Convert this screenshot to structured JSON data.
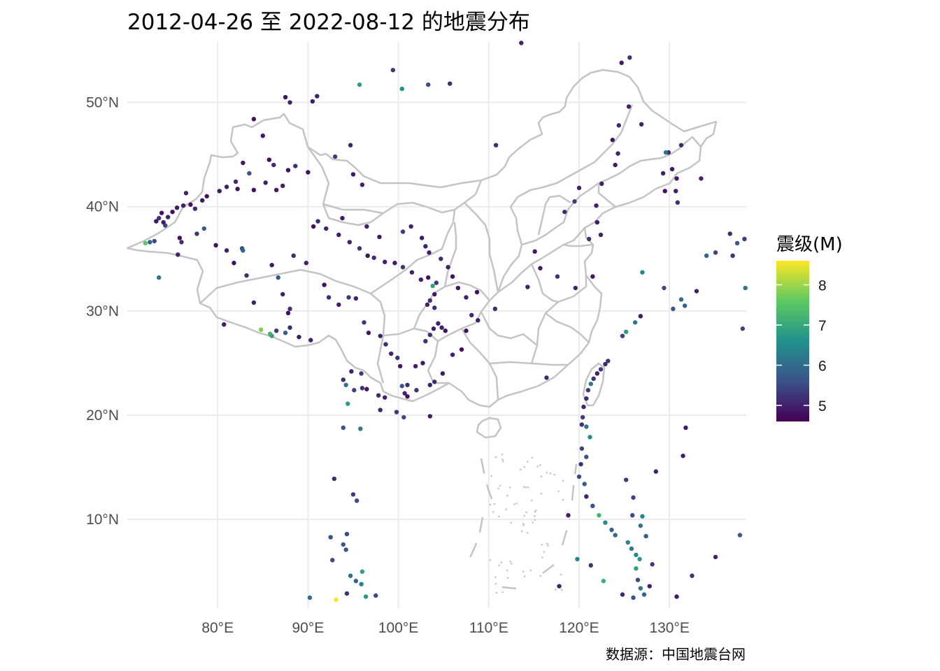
{
  "title": "2012-04-26 至 2022-08-12 的地震分布",
  "caption": "数据源：中国地震台网",
  "legend": {
    "title": "震级(M)",
    "ticks": [
      {
        "label": "8",
        "value": 8
      },
      {
        "label": "7",
        "value": 7
      },
      {
        "label": "6",
        "value": 6
      },
      {
        "label": "5",
        "value": 5
      }
    ],
    "min": 4.6,
    "max": 8.6,
    "colors": [
      "#440154",
      "#3b528b",
      "#21918c",
      "#5ec962",
      "#fde725"
    ]
  },
  "colors": {
    "grid": "#ebebeb",
    "boundary": "#c4c4c4",
    "tick_text": "#4d4d4d"
  },
  "chart_data": {
    "type": "scatter",
    "x_ticks": [
      {
        "label": "80°E",
        "value": 80
      },
      {
        "label": "90°E",
        "value": 90
      },
      {
        "label": "100°E",
        "value": 100
      },
      {
        "label": "110°E",
        "value": 110
      },
      {
        "label": "120°E",
        "value": 120
      },
      {
        "label": "130°E",
        "value": 130
      }
    ],
    "y_ticks": [
      {
        "label": "50°N",
        "value": 50
      },
      {
        "label": "40°N",
        "value": 40
      },
      {
        "label": "30°N",
        "value": 30
      },
      {
        "label": "20°N",
        "value": 20
      },
      {
        "label": "10°N",
        "value": 10
      }
    ],
    "xlim": [
      70,
      138.5
    ],
    "ylim": [
      1.5,
      55.8
    ],
    "color_variable": "震级(M)",
    "points": [
      [
        73.5,
        38.9,
        5.2
      ],
      [
        74.0,
        38.5,
        4.9
      ],
      [
        74.5,
        39.0,
        5.0
      ],
      [
        73.8,
        39.4,
        4.8
      ],
      [
        74.2,
        38.2,
        5.4
      ],
      [
        73.2,
        38.6,
        4.9
      ],
      [
        75.0,
        39.5,
        4.8
      ],
      [
        75.5,
        39.9,
        4.9
      ],
      [
        76.2,
        40.1,
        5.0
      ],
      [
        77.0,
        40.2,
        4.8
      ],
      [
        77.5,
        39.8,
        5.1
      ],
      [
        78.3,
        40.6,
        4.9
      ],
      [
        78.8,
        41.0,
        4.8
      ],
      [
        76.5,
        41.3,
        5.0
      ],
      [
        80.2,
        41.5,
        4.9
      ],
      [
        81.0,
        41.9,
        5.0
      ],
      [
        82.2,
        41.7,
        4.8
      ],
      [
        82.0,
        42.4,
        5.1
      ],
      [
        83.5,
        43.2,
        5.6
      ],
      [
        82.8,
        44.2,
        4.9
      ],
      [
        84.0,
        41.6,
        4.8
      ],
      [
        85.3,
        42.3,
        5.0
      ],
      [
        86.5,
        41.6,
        4.9
      ],
      [
        87.2,
        42.0,
        5.0
      ],
      [
        87.8,
        43.5,
        4.8
      ],
      [
        88.6,
        43.9,
        5.2
      ],
      [
        90.0,
        43.3,
        4.8
      ],
      [
        85.7,
        44.5,
        4.8
      ],
      [
        86.2,
        44.0,
        5.1
      ],
      [
        85.0,
        46.8,
        4.9
      ],
      [
        88.0,
        50.0,
        5.0
      ],
      [
        87.5,
        50.5,
        4.8
      ],
      [
        90.5,
        50.1,
        4.9
      ],
      [
        91.0,
        50.6,
        5.0
      ],
      [
        84.0,
        48.4,
        4.8
      ],
      [
        93.0,
        44.8,
        5.3
      ],
      [
        94.7,
        45.9,
        5.0
      ],
      [
        95.0,
        43.1,
        4.9
      ],
      [
        96.0,
        42.1,
        5.0
      ],
      [
        95.7,
        51.7,
        6.8
      ],
      [
        99.4,
        53.1,
        5.2
      ],
      [
        100.4,
        51.3,
        6.6
      ],
      [
        103.3,
        51.7,
        5.5
      ],
      [
        105.7,
        51.8,
        5.1
      ],
      [
        113.6,
        55.7,
        5.0
      ],
      [
        124.7,
        53.8,
        4.9
      ],
      [
        125.6,
        54.3,
        5.2
      ],
      [
        75.8,
        37.0,
        4.8
      ],
      [
        76.0,
        36.6,
        5.1
      ],
      [
        72.0,
        36.5,
        7.6
      ],
      [
        72.5,
        36.6,
        5.8
      ],
      [
        73.0,
        36.7,
        5.5
      ],
      [
        73.5,
        33.2,
        6.2
      ],
      [
        75.6,
        35.4,
        5.0
      ],
      [
        77.7,
        37.4,
        5.2
      ],
      [
        78.5,
        37.9,
        5.7
      ],
      [
        79.8,
        36.3,
        4.8
      ],
      [
        81.0,
        35.8,
        5.0
      ],
      [
        82.7,
        36.0,
        5.5
      ],
      [
        82.8,
        35.8,
        5.9
      ],
      [
        80.7,
        28.7,
        4.9
      ],
      [
        81.8,
        34.6,
        4.8
      ],
      [
        83.2,
        33.4,
        5.1
      ],
      [
        84.0,
        30.8,
        5.0
      ],
      [
        84.8,
        28.2,
        7.8
      ],
      [
        85.8,
        27.8,
        7.2
      ],
      [
        86.0,
        27.6,
        6.9
      ],
      [
        86.5,
        28.1,
        5.3
      ],
      [
        87.5,
        27.9,
        5.8
      ],
      [
        88.0,
        28.4,
        5.1
      ],
      [
        89.0,
        27.5,
        4.9
      ],
      [
        90.3,
        27.2,
        5.0
      ],
      [
        87.8,
        29.8,
        4.8
      ],
      [
        88.0,
        30.2,
        5.2
      ],
      [
        87.2,
        31.6,
        5.0
      ],
      [
        86.7,
        33.2,
        5.7
      ],
      [
        86.0,
        34.4,
        4.9
      ],
      [
        88.4,
        35.3,
        5.1
      ],
      [
        89.8,
        34.6,
        5.0
      ],
      [
        91.8,
        32.5,
        4.8
      ],
      [
        92.3,
        31.3,
        5.1
      ],
      [
        93.4,
        30.6,
        4.9
      ],
      [
        94.5,
        31.3,
        5.3
      ],
      [
        95.3,
        31.2,
        5.0
      ],
      [
        96.2,
        28.9,
        5.2
      ],
      [
        96.7,
        27.9,
        4.9
      ],
      [
        98.0,
        27.6,
        5.0
      ],
      [
        98.6,
        26.8,
        5.1
      ],
      [
        99.2,
        25.9,
        5.0
      ],
      [
        99.9,
        25.5,
        5.2
      ],
      [
        100.2,
        24.7,
        4.9
      ],
      [
        100.4,
        22.8,
        5.6
      ],
      [
        100.7,
        22.1,
        5.0
      ],
      [
        101.0,
        21.8,
        4.8
      ],
      [
        99.8,
        20.3,
        5.3
      ],
      [
        101.0,
        22.9,
        5.1
      ],
      [
        101.9,
        24.7,
        5.0
      ],
      [
        102.7,
        25.0,
        4.9
      ],
      [
        103.0,
        27.1,
        5.2
      ],
      [
        103.5,
        27.7,
        5.1
      ],
      [
        103.9,
        28.3,
        4.9
      ],
      [
        104.4,
        28.8,
        5.0
      ],
      [
        104.8,
        28.4,
        5.0
      ],
      [
        105.2,
        28.1,
        4.8
      ],
      [
        104.0,
        30.3,
        5.1
      ],
      [
        103.2,
        30.6,
        5.0
      ],
      [
        103.5,
        31.0,
        5.2
      ],
      [
        104.0,
        31.6,
        4.9
      ],
      [
        103.8,
        32.4,
        6.9
      ],
      [
        104.2,
        32.7,
        5.3
      ],
      [
        103.3,
        33.2,
        4.8
      ],
      [
        102.5,
        33.0,
        5.0
      ],
      [
        101.5,
        33.7,
        5.0
      ],
      [
        100.5,
        34.2,
        5.2
      ],
      [
        99.6,
        34.6,
        4.9
      ],
      [
        98.5,
        34.7,
        5.0
      ],
      [
        97.3,
        35.1,
        5.1
      ],
      [
        96.6,
        35.3,
        4.8
      ],
      [
        95.7,
        36.0,
        5.2
      ],
      [
        94.6,
        36.6,
        5.0
      ],
      [
        93.4,
        37.3,
        4.9
      ],
      [
        92.0,
        37.9,
        5.0
      ],
      [
        91.1,
        38.6,
        5.1
      ],
      [
        90.6,
        38.1,
        4.8
      ],
      [
        93.8,
        38.9,
        4.9
      ],
      [
        96.5,
        38.1,
        5.0
      ],
      [
        97.9,
        37.1,
        4.9
      ],
      [
        100.5,
        37.6,
        5.3
      ],
      [
        101.4,
        38.1,
        5.0
      ],
      [
        102.6,
        37.0,
        4.9
      ],
      [
        103.0,
        36.2,
        5.0
      ],
      [
        103.4,
        35.6,
        5.0
      ],
      [
        104.7,
        35.0,
        5.1
      ],
      [
        105.5,
        34.2,
        5.0
      ],
      [
        106.0,
        33.3,
        4.8
      ],
      [
        106.6,
        32.2,
        4.9
      ],
      [
        107.5,
        31.3,
        5.0
      ],
      [
        108.1,
        29.6,
        5.1
      ],
      [
        108.8,
        29.1,
        4.9
      ],
      [
        107.5,
        28.1,
        4.8
      ],
      [
        107.0,
        26.3,
        4.8
      ],
      [
        106.0,
        25.8,
        5.0
      ],
      [
        104.9,
        24.0,
        4.9
      ],
      [
        104.0,
        23.2,
        5.1
      ],
      [
        103.5,
        22.9,
        5.0
      ],
      [
        102.0,
        22.4,
        5.2
      ],
      [
        98.5,
        21.7,
        5.0
      ],
      [
        97.8,
        21.9,
        5.1
      ],
      [
        96.5,
        22.5,
        4.9
      ],
      [
        95.1,
        22.4,
        5.4
      ],
      [
        94.2,
        22.9,
        6.1
      ],
      [
        93.9,
        23.4,
        5.1
      ],
      [
        94.8,
        24.2,
        5.0
      ],
      [
        95.9,
        24.0,
        5.3
      ],
      [
        96.0,
        22.6,
        5.2
      ],
      [
        94.4,
        21.1,
        6.8
      ],
      [
        93.9,
        18.8,
        5.6
      ],
      [
        95.8,
        18.7,
        6.2
      ],
      [
        98.0,
        20.5,
        5.1
      ],
      [
        100.6,
        19.8,
        5.5
      ],
      [
        103.5,
        19.9,
        4.9
      ],
      [
        108.7,
        31.8,
        4.8
      ],
      [
        110.7,
        30.2,
        5.1
      ],
      [
        114.3,
        32.3,
        5.0
      ],
      [
        115.7,
        34.1,
        4.9
      ],
      [
        115.1,
        35.7,
        4.9
      ],
      [
        117.6,
        33.3,
        5.2
      ],
      [
        119.6,
        32.2,
        5.0
      ],
      [
        121.5,
        33.3,
        4.9
      ],
      [
        121.1,
        36.9,
        5.2
      ],
      [
        122.4,
        37.3,
        5.0
      ],
      [
        122.0,
        38.5,
        4.9
      ],
      [
        121.9,
        40.1,
        5.0
      ],
      [
        118.4,
        39.5,
        5.1
      ],
      [
        119.5,
        40.5,
        5.3
      ],
      [
        120.0,
        41.8,
        5.0
      ],
      [
        122.5,
        42.2,
        5.0
      ],
      [
        124.0,
        44.0,
        4.9
      ],
      [
        124.3,
        45.1,
        5.0
      ],
      [
        123.7,
        46.4,
        4.8
      ],
      [
        124.4,
        47.8,
        5.1
      ],
      [
        125.5,
        49.6,
        5.0
      ],
      [
        126.9,
        47.9,
        5.0
      ],
      [
        129.3,
        43.2,
        5.0
      ],
      [
        129.9,
        45.2,
        5.1
      ],
      [
        130.3,
        43.6,
        4.9
      ],
      [
        130.8,
        42.7,
        4.9
      ],
      [
        130.7,
        41.5,
        5.0
      ],
      [
        130.9,
        40.4,
        5.1
      ],
      [
        129.5,
        41.5,
        4.8
      ],
      [
        129.6,
        45.2,
        6.1
      ],
      [
        131.3,
        45.9,
        5.1
      ],
      [
        133.5,
        42.7,
        5.0
      ],
      [
        134.1,
        35.3,
        5.9
      ],
      [
        135.1,
        35.6,
        5.4
      ],
      [
        136.7,
        37.4,
        5.1
      ],
      [
        137.5,
        36.5,
        5.6
      ],
      [
        138.3,
        36.9,
        5.3
      ],
      [
        137.0,
        35.3,
        5.2
      ],
      [
        138.4,
        32.2,
        6.2
      ],
      [
        138.1,
        28.3,
        5.4
      ],
      [
        133.0,
        31.9,
        5.0
      ],
      [
        131.7,
        30.5,
        5.8
      ],
      [
        131.3,
        31.1,
        6.0
      ],
      [
        130.4,
        30.2,
        5.7
      ],
      [
        129.4,
        32.2,
        5.5
      ],
      [
        127.0,
        33.7,
        6.4
      ],
      [
        126.8,
        29.5,
        4.9
      ],
      [
        126.2,
        28.9,
        6.2
      ],
      [
        125.2,
        28.0,
        6.8
      ],
      [
        124.8,
        27.6,
        5.4
      ],
      [
        123.2,
        25.2,
        5.2
      ],
      [
        122.9,
        24.9,
        5.1
      ],
      [
        122.4,
        24.4,
        5.3
      ],
      [
        122.0,
        24.0,
        5.0
      ],
      [
        121.6,
        23.5,
        5.2
      ],
      [
        121.3,
        23.0,
        6.3
      ],
      [
        121.0,
        22.4,
        5.3
      ],
      [
        120.8,
        21.6,
        5.1
      ],
      [
        120.5,
        20.8,
        5.0
      ],
      [
        120.4,
        19.8,
        5.3
      ],
      [
        120.3,
        19.1,
        5.2
      ],
      [
        120.8,
        18.9,
        6.1
      ],
      [
        121.2,
        17.9,
        6.5
      ],
      [
        120.3,
        16.8,
        5.4
      ],
      [
        120.8,
        16.0,
        5.7
      ],
      [
        120.2,
        15.3,
        5.2
      ],
      [
        120.0,
        14.1,
        5.5
      ],
      [
        120.6,
        13.4,
        5.8
      ],
      [
        120.8,
        12.2,
        5.0
      ],
      [
        121.5,
        11.3,
        5.6
      ],
      [
        122.2,
        10.4,
        7.2
      ],
      [
        122.9,
        9.7,
        6.5
      ],
      [
        123.6,
        9.0,
        5.9
      ],
      [
        124.0,
        8.5,
        6.0
      ],
      [
        125.4,
        7.8,
        6.4
      ],
      [
        125.8,
        7.2,
        6.2
      ],
      [
        126.3,
        6.6,
        6.5
      ],
      [
        126.7,
        6.2,
        6.7
      ],
      [
        126.3,
        5.3,
        6.9
      ],
      [
        126.5,
        4.2,
        5.5
      ],
      [
        126.8,
        3.4,
        6.2
      ],
      [
        127.2,
        2.8,
        5.9
      ],
      [
        126.0,
        2.5,
        5.6
      ],
      [
        124.8,
        2.8,
        5.1
      ],
      [
        122.7,
        4.1,
        7.1
      ],
      [
        121.3,
        5.6,
        5.2
      ],
      [
        119.8,
        6.2,
        6.4
      ],
      [
        118.8,
        10.4,
        5.0
      ],
      [
        125.9,
        10.4,
        5.5
      ],
      [
        126.0,
        12.1,
        5.4
      ],
      [
        127.0,
        10.3,
        6.4
      ],
      [
        125.2,
        13.8,
        5.3
      ],
      [
        126.8,
        9.4,
        6.1
      ],
      [
        127.4,
        8.4,
        5.8
      ],
      [
        127.8,
        3.6,
        5.0
      ],
      [
        128.1,
        5.7,
        5.3
      ],
      [
        130.8,
        2.6,
        4.9
      ],
      [
        132.5,
        4.6,
        5.2
      ],
      [
        135.1,
        6.4,
        5.0
      ],
      [
        137.8,
        8.5,
        5.7
      ],
      [
        131.5,
        16.1,
        5.0
      ],
      [
        131.8,
        18.8,
        4.9
      ],
      [
        128.5,
        14.6,
        5.0
      ],
      [
        116.4,
        23.6,
        5.1
      ],
      [
        117.8,
        3.6,
        5.0
      ],
      [
        92.5,
        8.3,
        5.6
      ],
      [
        93.9,
        7.6,
        5.7
      ],
      [
        94.2,
        7.1,
        5.6
      ],
      [
        92.7,
        6.1,
        5.5
      ],
      [
        90.2,
        2.5,
        6.0
      ],
      [
        93.1,
        2.3,
        8.6
      ],
      [
        94.3,
        2.9,
        5.2
      ],
      [
        95.3,
        4.1,
        5.8
      ],
      [
        96.0,
        5.0,
        6.8
      ],
      [
        95.9,
        3.8,
        6.4
      ],
      [
        96.4,
        2.6,
        6.7
      ],
      [
        97.5,
        2.7,
        5.5
      ],
      [
        94.7,
        4.6,
        6.1
      ],
      [
        94.3,
        8.6,
        5.5
      ],
      [
        95.4,
        11.8,
        5.5
      ],
      [
        95.0,
        12.4,
        5.3
      ],
      [
        92.9,
        13.9,
        5.1
      ],
      [
        110.8,
        45.9,
        5.1
      ]
    ]
  }
}
